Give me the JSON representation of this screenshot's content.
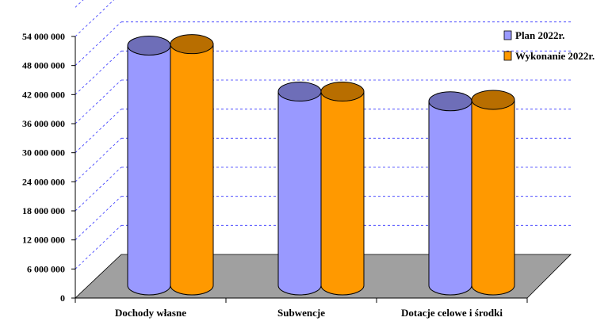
{
  "chart_data": {
    "type": "bar",
    "style": "3d-cylinder",
    "categories": [
      "Dochody własne",
      "Subwencje",
      "Dotacje celowe i środki"
    ],
    "series": [
      {
        "name": "Plan 2022r.",
        "color": "#9999ff",
        "values": [
          49500000,
          40000000,
          38000000
        ]
      },
      {
        "name": "Wykonanie 2022r.",
        "color": "#ff9900",
        "values": [
          49800000,
          40000000,
          38300000
        ]
      }
    ],
    "y_ticks": [
      "0",
      "6 000 000",
      "12 000 000",
      "18 000 000",
      "24 000 000",
      "30 000 000",
      "36 000 000",
      "42 000 000",
      "48 000 000",
      "54 000 000"
    ],
    "ylim": [
      0,
      54000000
    ],
    "grid": true,
    "gridline_color": "#3333ff",
    "floor_color": "#a0a0a0",
    "legend_placement": "right",
    "title": "",
    "xlabel": "",
    "ylabel": ""
  }
}
